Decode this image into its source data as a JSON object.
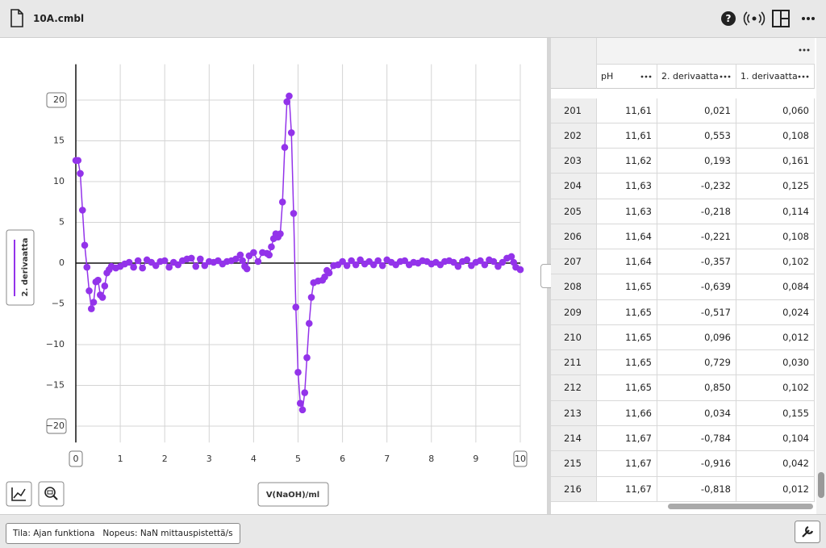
{
  "header": {
    "file_name": "10A.cmbl"
  },
  "chart_data": {
    "type": "line",
    "x_label": "V(NaOH)/ml",
    "xlim": [
      0,
      10
    ],
    "ylim": [
      -22,
      24.4
    ],
    "xticks": [
      0,
      1,
      2,
      3,
      4,
      5,
      6,
      7,
      8,
      9,
      10
    ],
    "yticks": [
      {
        "value": -20,
        "label": "−20"
      },
      {
        "value": -15,
        "label": "−15"
      },
      {
        "value": -10,
        "label": "−10"
      },
      {
        "value": -5,
        "label": "−5"
      },
      0,
      5,
      10,
      15,
      20
    ],
    "grid": true,
    "x": [
      0,
      0.05,
      0.1,
      0.15,
      0.2,
      0.25,
      0.3,
      0.35,
      0.4,
      0.45,
      0.5,
      0.55,
      0.6,
      0.65,
      0.7,
      0.75,
      0.8,
      0.9,
      1.0,
      1.1,
      1.2,
      1.3,
      1.4,
      1.5,
      1.6,
      1.7,
      1.8,
      1.9,
      2.0,
      2.1,
      2.2,
      2.3,
      2.4,
      2.5,
      2.6,
      2.7,
      2.8,
      2.9,
      3.0,
      3.1,
      3.2,
      3.3,
      3.4,
      3.5,
      3.6,
      3.7,
      3.75,
      3.8,
      3.85,
      3.9,
      4.0,
      4.1,
      4.2,
      4.3,
      4.35,
      4.4,
      4.45,
      4.5,
      4.55,
      4.6,
      4.65,
      4.7,
      4.75,
      4.8,
      4.85,
      4.9,
      4.95,
      5.0,
      5.05,
      5.1,
      5.15,
      5.2,
      5.25,
      5.3,
      5.35,
      5.45,
      5.55,
      5.6,
      5.65,
      5.7,
      5.8,
      5.9,
      6.0,
      6.1,
      6.2,
      6.3,
      6.4,
      6.5,
      6.6,
      6.7,
      6.8,
      6.9,
      7.0,
      7.1,
      7.2,
      7.3,
      7.4,
      7.5,
      7.6,
      7.7,
      7.8,
      7.9,
      8.0,
      8.1,
      8.2,
      8.3,
      8.4,
      8.5,
      8.6,
      8.7,
      8.8,
      8.9,
      9.0,
      9.1,
      9.2,
      9.3,
      9.4,
      9.5,
      9.6,
      9.7,
      9.8,
      9.85,
      9.9,
      10.0
    ],
    "series": [
      {
        "name": "2. derivaatta",
        "color": "#9333ea",
        "values": [
          12.6,
          12.6,
          11.0,
          6.5,
          2.2,
          -0.5,
          -3.4,
          -5.6,
          -4.8,
          -2.3,
          -2.1,
          -3.9,
          -4.2,
          -2.8,
          -1.2,
          -0.8,
          -0.4,
          -0.6,
          -0.4,
          -0.1,
          0.1,
          -0.5,
          0.3,
          -0.6,
          0.4,
          0.1,
          -0.3,
          0.2,
          0.3,
          -0.5,
          0.1,
          -0.2,
          0.3,
          0.5,
          0.6,
          -0.4,
          0.5,
          -0.3,
          0.2,
          0.1,
          0.3,
          -0.1,
          0.2,
          0.3,
          0.5,
          1.0,
          0.3,
          -0.4,
          -0.7,
          0.9,
          1.3,
          0.2,
          1.3,
          1.2,
          1.0,
          2.0,
          3.0,
          3.6,
          3.2,
          3.6,
          7.5,
          14.2,
          19.8,
          20.5,
          16.0,
          6.1,
          -5.4,
          -13.4,
          -17.2,
          -18.0,
          -15.9,
          -11.6,
          -7.4,
          -4.2,
          -2.4,
          -2.2,
          -2.1,
          -1.7,
          -0.9,
          -1.2,
          -0.3,
          -0.2,
          0.2,
          -0.3,
          0.3,
          -0.2,
          0.4,
          -0.1,
          0.2,
          -0.2,
          0.3,
          -0.3,
          0.4,
          0.1,
          -0.2,
          0.2,
          0.3,
          -0.2,
          0.1,
          0.0,
          0.3,
          0.2,
          -0.1,
          0.1,
          -0.2,
          0.2,
          0.3,
          0.1,
          -0.4,
          0.2,
          0.4,
          -0.3,
          0.1,
          0.3,
          -0.2,
          0.4,
          0.2,
          -0.4,
          0.1,
          0.6,
          0.8,
          0.1,
          -0.5,
          -0.8
        ]
      }
    ]
  },
  "table": {
    "columns": [
      "pH",
      "2. derivaatta",
      "1. derivaatta"
    ],
    "rows": [
      [
        "201",
        "11,61",
        "0,021",
        "0,060"
      ],
      [
        "202",
        "11,61",
        "0,553",
        "0,108"
      ],
      [
        "203",
        "11,62",
        "0,193",
        "0,161"
      ],
      [
        "204",
        "11,63",
        "-0,232",
        "0,125"
      ],
      [
        "205",
        "11,63",
        "-0,218",
        "0,114"
      ],
      [
        "206",
        "11,64",
        "-0,221",
        "0,108"
      ],
      [
        "207",
        "11,64",
        "-0,357",
        "0,102"
      ],
      [
        "208",
        "11,65",
        "-0,639",
        "0,084"
      ],
      [
        "209",
        "11,65",
        "-0,517",
        "0,024"
      ],
      [
        "210",
        "11,65",
        "0,096",
        "0,012"
      ],
      [
        "211",
        "11,65",
        "0,729",
        "0,030"
      ],
      [
        "212",
        "11,65",
        "0,850",
        "0,102"
      ],
      [
        "213",
        "11,66",
        "0,034",
        "0,155"
      ],
      [
        "214",
        "11,67",
        "-0,784",
        "0,104"
      ],
      [
        "215",
        "11,67",
        "-0,916",
        "0,042"
      ],
      [
        "216",
        "11,67",
        "-0,818",
        "0,012"
      ]
    ]
  },
  "status": {
    "mode": "Tila: Ajan funktiona",
    "rate": "Nopeus: NaN mittauspistettä/s"
  }
}
